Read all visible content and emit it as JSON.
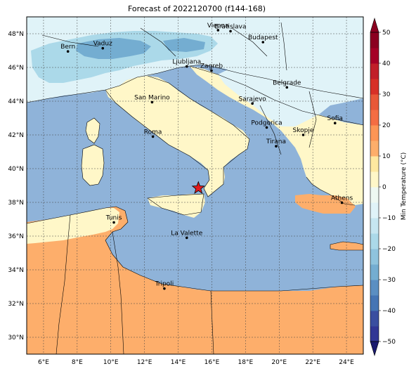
{
  "title": "Forecast of 2022120700 (f144-168)",
  "map": {
    "lon_range": [
      5.0,
      25.0
    ],
    "lat_range": [
      29.0,
      49.0
    ],
    "lon_ticks": [
      6,
      8,
      10,
      12,
      14,
      16,
      18,
      20,
      22,
      24
    ],
    "lat_ticks": [
      30,
      32,
      34,
      36,
      38,
      40,
      42,
      44,
      46,
      48
    ],
    "lon_labels": [
      "6°E",
      "8°E",
      "10°E",
      "12°E",
      "14°E",
      "16°E",
      "18°E",
      "20°E",
      "22°E",
      "24°E"
    ],
    "lat_labels": [
      "30°N",
      "32°N",
      "34°N",
      "36°N",
      "38°N",
      "40°N",
      "42°N",
      "44°N",
      "46°N",
      "48°N"
    ],
    "sea_color": "#8fb3d9",
    "land_warm_color": "#fdae6b",
    "land_mild_color": "#fff7c8",
    "land_cold_color": "#e0f3f8",
    "land_colder_color": "#abd9e9",
    "land_coldest_color": "#74add1",
    "star_color": "#e31a1c",
    "star_position": {
      "lon": 15.2,
      "lat": 38.85
    }
  },
  "cities": [
    {
      "name": "Bern",
      "lon": 7.45,
      "lat": 46.95
    },
    {
      "name": "Vaduz",
      "lon": 9.52,
      "lat": 47.14
    },
    {
      "name": "Vienna",
      "lon": 16.37,
      "lat": 48.21
    },
    {
      "name": "Bratislava",
      "lon": 17.11,
      "lat": 48.15
    },
    {
      "name": "Budapest",
      "lon": 19.04,
      "lat": 47.5
    },
    {
      "name": "Ljubljana",
      "lon": 14.51,
      "lat": 46.06
    },
    {
      "name": "Zagreb",
      "lon": 15.98,
      "lat": 45.81
    },
    {
      "name": "Belgrade",
      "lon": 20.46,
      "lat": 44.82
    },
    {
      "name": "San Marino",
      "lon": 12.45,
      "lat": 43.94
    },
    {
      "name": "Sarajevo",
      "lon": 18.41,
      "lat": 43.86
    },
    {
      "name": "Sofia",
      "lon": 23.32,
      "lat": 42.7
    },
    {
      "name": "Podgorica",
      "lon": 19.26,
      "lat": 42.44
    },
    {
      "name": "Skopje",
      "lon": 21.43,
      "lat": 42.0
    },
    {
      "name": "Roma",
      "lon": 12.5,
      "lat": 41.9
    },
    {
      "name": "Tirana",
      "lon": 19.82,
      "lat": 41.33
    },
    {
      "name": "Athens",
      "lon": 23.73,
      "lat": 37.98
    },
    {
      "name": "Tunis",
      "lon": 10.18,
      "lat": 36.81
    },
    {
      "name": "La Valette",
      "lon": 14.51,
      "lat": 35.9
    },
    {
      "name": "Tripoli",
      "lon": 13.18,
      "lat": 32.89
    }
  ],
  "colorbar": {
    "label": "Min Temperature (°C)",
    "levels": [
      -50,
      -45,
      -40,
      -35,
      -30,
      -25,
      -20,
      -15,
      -10,
      -5,
      0,
      5,
      10,
      15,
      20,
      25,
      30,
      35,
      40,
      45,
      50
    ],
    "colors": [
      "#313695",
      "#3a4ea0",
      "#4575b4",
      "#5b8fc2",
      "#74add1",
      "#8fc3dd",
      "#abd9e9",
      "#c6e6f1",
      "#e0f3f8",
      "#eef8f2",
      "#fff7c8",
      "#fee8a0",
      "#fdae6b",
      "#fc9555",
      "#f46d43",
      "#e85838",
      "#d73027",
      "#c11f29",
      "#a50026",
      "#8b0020"
    ],
    "tick_values": [
      -50,
      -40,
      -30,
      -20,
      -10,
      0,
      10,
      20,
      30,
      40,
      50
    ],
    "tick_labels": [
      "−50",
      "−40",
      "−30",
      "−20",
      "−10",
      "0",
      "10",
      "20",
      "30",
      "40",
      "50"
    ]
  }
}
